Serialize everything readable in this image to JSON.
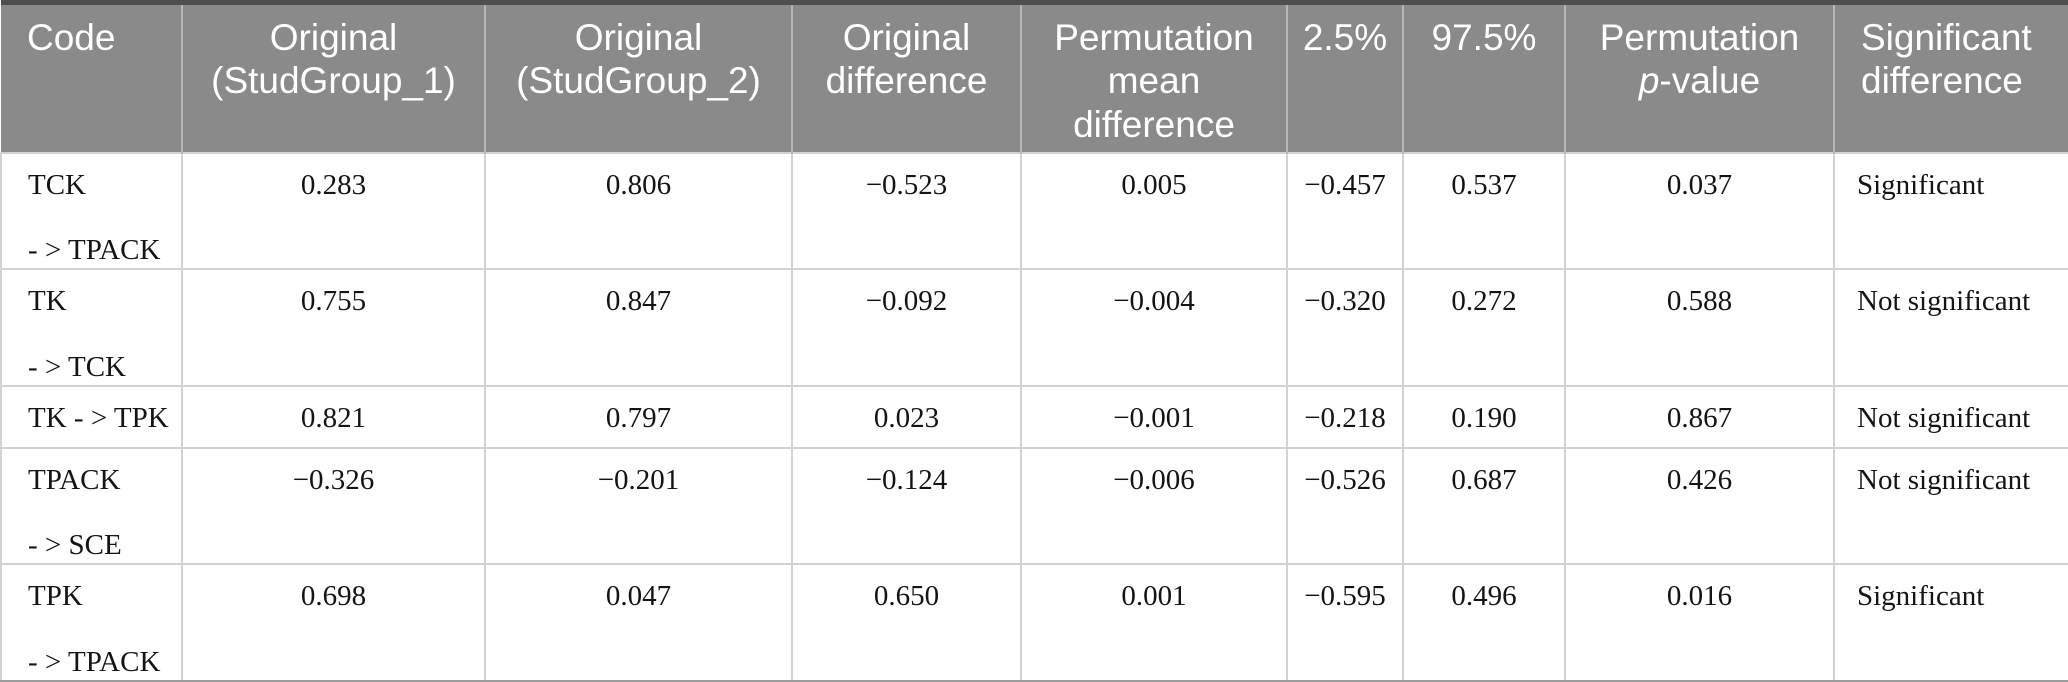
{
  "colors": {
    "header_bg": "#8a8a8a",
    "header_text": "#ffffff",
    "top_rule": "#4e4e4e",
    "bottom_rule": "#9c9c9c",
    "cell_border": "#d2d2d2",
    "header_divider": "#b6b6b6",
    "body_text": "#141414"
  },
  "table": {
    "columns": [
      {
        "id": "code",
        "lines": [
          "Code"
        ]
      },
      {
        "id": "original_studgroup_1",
        "lines": [
          "Original",
          "(StudGroup_1)"
        ]
      },
      {
        "id": "original_studgroup_2",
        "lines": [
          "Original",
          "(StudGroup_2)"
        ]
      },
      {
        "id": "original_difference",
        "lines": [
          "Original",
          "difference"
        ]
      },
      {
        "id": "permutation_mean_difference",
        "lines": [
          "Permutation",
          "mean",
          "difference"
        ]
      },
      {
        "id": "pct_2_5",
        "lines": [
          "2.5%"
        ]
      },
      {
        "id": "pct_97_5",
        "lines": [
          "97.5%"
        ]
      },
      {
        "id": "permutation_p_value",
        "line1": "Permutation",
        "italic": "p",
        "suffix": "-value"
      },
      {
        "id": "significant_difference",
        "lines": [
          "Significant",
          "difference"
        ]
      }
    ],
    "rows": [
      {
        "code_lines": [
          "TCK",
          "- > TPACK"
        ],
        "original_studgroup_1": "0.283",
        "original_studgroup_2": "0.806",
        "original_difference": "−0.523",
        "permutation_mean_difference": "0.005",
        "pct_2_5": "−0.457",
        "pct_97_5": "0.537",
        "permutation_p_value": "0.037",
        "significant_difference": "Significant"
      },
      {
        "code_lines": [
          "TK",
          "- > TCK"
        ],
        "original_studgroup_1": "0.755",
        "original_studgroup_2": "0.847",
        "original_difference": "−0.092",
        "permutation_mean_difference": "−0.004",
        "pct_2_5": "−0.320",
        "pct_97_5": "0.272",
        "permutation_p_value": "0.588",
        "significant_difference": "Not significant"
      },
      {
        "code_lines": [
          "TK - > TPK"
        ],
        "original_studgroup_1": "0.821",
        "original_studgroup_2": "0.797",
        "original_difference": "0.023",
        "permutation_mean_difference": "−0.001",
        "pct_2_5": "−0.218",
        "pct_97_5": "0.190",
        "permutation_p_value": "0.867",
        "significant_difference": "Not significant"
      },
      {
        "code_lines": [
          "TPACK",
          "- > SCE"
        ],
        "original_studgroup_1": "−0.326",
        "original_studgroup_2": "−0.201",
        "original_difference": "−0.124",
        "permutation_mean_difference": "−0.006",
        "pct_2_5": "−0.526",
        "pct_97_5": "0.687",
        "permutation_p_value": "0.426",
        "significant_difference": "Not significant"
      },
      {
        "code_lines": [
          "TPK",
          "- > TPACK"
        ],
        "original_studgroup_1": "0.698",
        "original_studgroup_2": "0.047",
        "original_difference": "0.650",
        "permutation_mean_difference": "0.001",
        "pct_2_5": "−0.595",
        "pct_97_5": "0.496",
        "permutation_p_value": "0.016",
        "significant_difference": "Significant"
      }
    ]
  }
}
